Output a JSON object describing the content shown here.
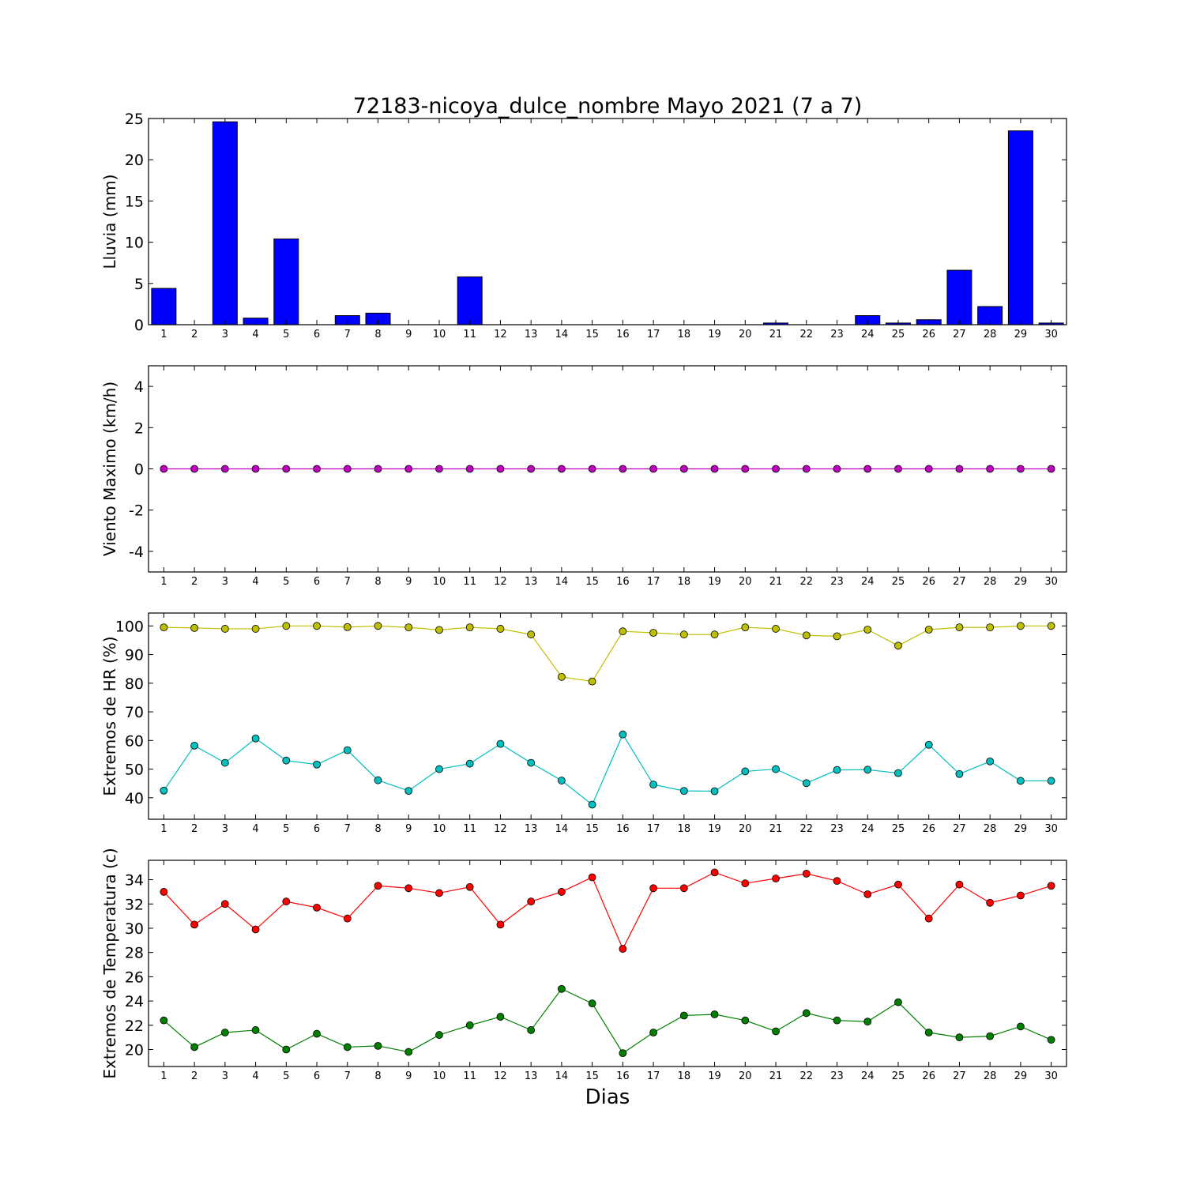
{
  "title": "72183-nicoya_dulce_nombre Mayo 2021  (7 a 7)",
  "xlabel": "Dias",
  "chart_data": [
    {
      "type": "bar",
      "ylabel": "Lluvia (mm)",
      "ylim": [
        0,
        25
      ],
      "yticks": [
        0,
        5,
        10,
        15,
        20,
        25
      ],
      "categories": [
        1,
        2,
        3,
        4,
        5,
        6,
        7,
        8,
        9,
        10,
        11,
        12,
        13,
        14,
        15,
        16,
        17,
        18,
        19,
        20,
        21,
        22,
        23,
        24,
        25,
        26,
        27,
        28,
        29,
        30
      ],
      "series": [
        {
          "color": "#0000ff",
          "values": [
            4.4,
            0,
            24.6,
            0.8,
            10.4,
            0,
            1.1,
            1.4,
            0,
            0,
            5.8,
            0,
            0,
            0,
            0,
            0,
            0,
            0,
            0,
            0,
            0.2,
            0,
            0,
            1.1,
            0.2,
            0.6,
            6.6,
            2.2,
            23.5,
            0.2
          ]
        }
      ]
    },
    {
      "type": "line",
      "ylabel": "Viento Maximo (km/h)",
      "ylim": [
        -5,
        5
      ],
      "yticks": [
        -4,
        -2,
        0,
        2,
        4
      ],
      "x": [
        1,
        2,
        3,
        4,
        5,
        6,
        7,
        8,
        9,
        10,
        11,
        12,
        13,
        14,
        15,
        16,
        17,
        18,
        19,
        20,
        21,
        22,
        23,
        24,
        25,
        26,
        27,
        28,
        29,
        30
      ],
      "series": [
        {
          "color": "#bf00bf",
          "values": [
            0,
            0,
            0,
            0,
            0,
            0,
            0,
            0,
            0,
            0,
            0,
            0,
            0,
            0,
            0,
            0,
            0,
            0,
            0,
            0,
            0,
            0,
            0,
            0,
            0,
            0,
            0,
            0,
            0,
            0
          ]
        }
      ]
    },
    {
      "type": "line",
      "ylabel": "Extremos de HR (%)",
      "ylim": [
        32.5,
        104.5
      ],
      "yticks": [
        40,
        50,
        60,
        70,
        80,
        90,
        100
      ],
      "x": [
        1,
        2,
        3,
        4,
        5,
        6,
        7,
        8,
        9,
        10,
        11,
        12,
        13,
        14,
        15,
        16,
        17,
        18,
        19,
        20,
        21,
        22,
        23,
        24,
        25,
        26,
        27,
        28,
        29,
        30
      ],
      "series": [
        {
          "color": "#bfbf00",
          "values": [
            99.5,
            99.3,
            99.0,
            99.0,
            100.0,
            100.0,
            99.6,
            100.0,
            99.5,
            98.6,
            99.5,
            99.0,
            97.0,
            82.2,
            80.6,
            98.1,
            97.6,
            97.0,
            97.0,
            99.5,
            99.0,
            96.7,
            96.4,
            98.7,
            93.1,
            98.7,
            99.5,
            99.5,
            100.0,
            100.0
          ]
        },
        {
          "color": "#00bfbf",
          "values": [
            42.5,
            58.2,
            52.2,
            60.7,
            53.0,
            51.6,
            56.6,
            46.1,
            42.4,
            50.0,
            51.9,
            58.8,
            52.2,
            46.0,
            37.6,
            62.1,
            44.6,
            42.4,
            42.3,
            49.2,
            50.0,
            45.1,
            49.7,
            49.8,
            48.6,
            58.5,
            48.3,
            52.7,
            45.9,
            45.9
          ]
        }
      ]
    },
    {
      "type": "line",
      "ylabel": "Extremos de Temperatura (c)",
      "ylim": [
        18.6,
        35.6
      ],
      "yticks": [
        20,
        22,
        24,
        26,
        28,
        30,
        32,
        34
      ],
      "x": [
        1,
        2,
        3,
        4,
        5,
        6,
        7,
        8,
        9,
        10,
        11,
        12,
        13,
        14,
        15,
        16,
        17,
        18,
        19,
        20,
        21,
        22,
        23,
        24,
        25,
        26,
        27,
        28,
        29,
        30
      ],
      "series": [
        {
          "color": "#ff0000",
          "values": [
            33.0,
            30.3,
            32.0,
            29.9,
            32.2,
            31.7,
            30.8,
            33.5,
            33.3,
            32.9,
            33.4,
            30.3,
            32.2,
            33.0,
            34.2,
            28.3,
            33.3,
            33.3,
            34.6,
            33.7,
            34.1,
            34.5,
            33.9,
            32.8,
            33.6,
            30.8,
            33.6,
            32.1,
            32.7,
            33.5
          ]
        },
        {
          "color": "#007f00",
          "values": [
            22.4,
            20.2,
            21.4,
            21.6,
            20.0,
            21.3,
            20.2,
            20.3,
            19.8,
            21.2,
            22.0,
            22.7,
            21.6,
            25.0,
            23.8,
            19.7,
            21.4,
            22.8,
            22.9,
            22.4,
            21.5,
            23.0,
            22.4,
            22.3,
            23.9,
            21.4,
            21.0,
            21.1,
            21.9,
            20.8
          ]
        }
      ]
    }
  ]
}
